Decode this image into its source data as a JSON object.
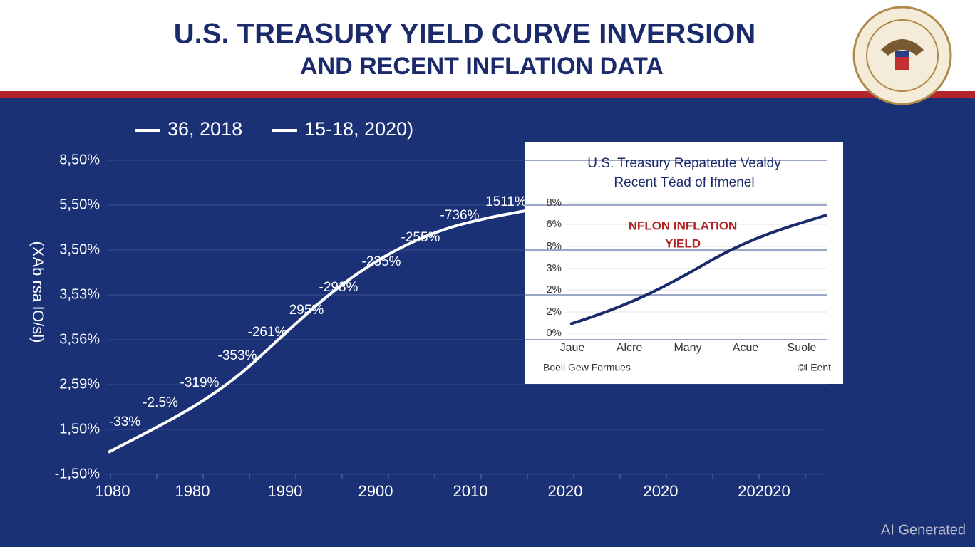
{
  "header": {
    "title_line1": "U.S. TREASURY YIELD CURVE INVERSION",
    "title_line2": "AND RECENT INFLATION DATA"
  },
  "main_chart": {
    "legend": [
      "36, 2018",
      "15-18, 2020)"
    ],
    "y_axis_title": "(XAb rsa lO/sl)",
    "y_labels": [
      "8,50%",
      "5,50%",
      "3,50%",
      "3,53%",
      "3,56%",
      "2,59%",
      "1,50%",
      "-1,50%"
    ],
    "x_labels": [
      "1080",
      "1980",
      "1990",
      "2900",
      "2010",
      "2020",
      "2020",
      "202020"
    ],
    "point_labels": [
      "-33%",
      "-2.5%",
      "-319%",
      "-353%",
      "-261%",
      "295%",
      "-293%",
      "-235%",
      "-255%",
      "-736%",
      "1511%"
    ]
  },
  "inset_chart": {
    "title_line1": "U.S. Treasury Repateute Vealdy",
    "title_line2": "Recent Téad of Ifmenel",
    "annotation_line1": "NFLON INFLATION",
    "annotation_line2": "YIELD",
    "y_labels": [
      "8%",
      "6%",
      "8%",
      "3%",
      "2%",
      "2%",
      "0%"
    ],
    "x_labels": [
      "Jaue",
      "Alcre",
      "Many",
      "Acue",
      "Suole"
    ],
    "footer_left": "Boeli Gew Formues",
    "footer_right": "©I Eent"
  },
  "watermark": "AI Generated"
}
